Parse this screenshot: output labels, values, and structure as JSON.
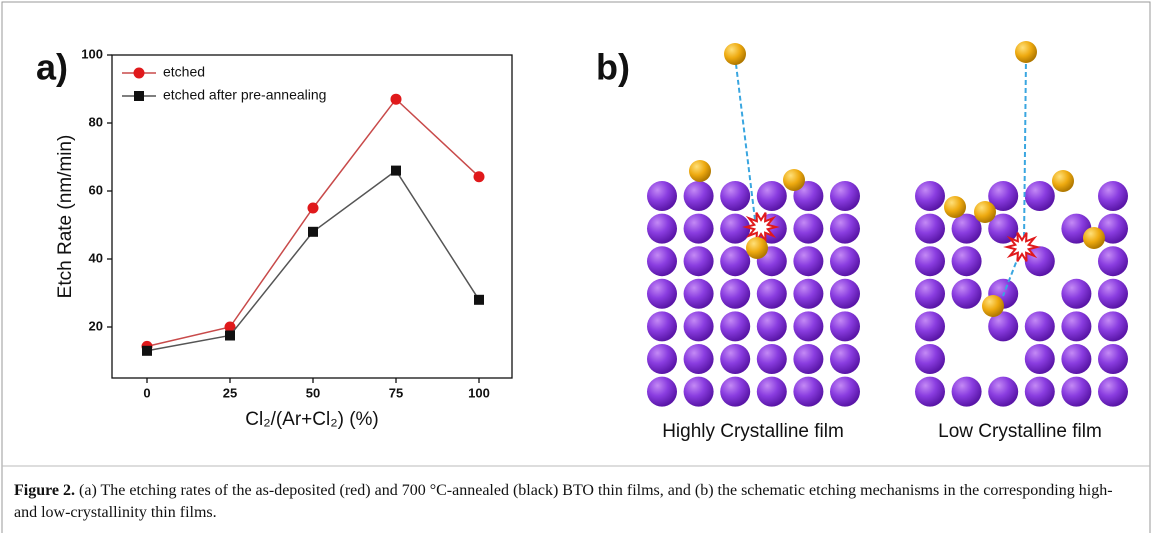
{
  "panel_labels": {
    "a": "a)",
    "b": "b)"
  },
  "chart_data": {
    "type": "line",
    "x_label": "Cl₂/(Ar+Cl₂) (%)",
    "y_label": "Etch Rate (nm/min)",
    "categories": [
      "0",
      "25",
      "50",
      "75",
      "100"
    ],
    "series": [
      {
        "name": "etched",
        "color": "#e0191b",
        "marker": "circle",
        "values": [
          14.3,
          20,
          55,
          87,
          64.2
        ]
      },
      {
        "name": "etched after pre-annealing",
        "color": "#111111",
        "marker": "square",
        "values": [
          13,
          17.5,
          48,
          66,
          28
        ]
      }
    ],
    "ylim": [
      5,
      100
    ],
    "yticks": [
      20,
      40,
      60,
      80,
      100
    ],
    "grid": false,
    "legend": "upper left"
  },
  "diagram": {
    "left_label": "Highly Crystalline film",
    "right_label": "Low Crystalline film"
  },
  "caption": {
    "label": "Figure 2.",
    "text": "(a) The etching rates of the as-deposited (red) and 700 °C-annealed (black) BTO thin films, and (b) the schematic etching mechanisms in the corresponding high- and low-crystallinity thin films."
  }
}
